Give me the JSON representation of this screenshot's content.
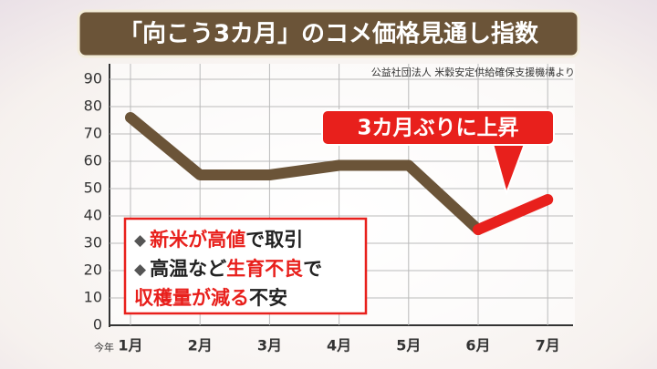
{
  "chart_data": {
    "type": "line",
    "title": "「向こう3カ月」のコメ価格見通し指数",
    "source": "公益社団法人 米穀安定供給確保支援機構より",
    "x_note": "今年",
    "categories": [
      "1月",
      "2月",
      "3月",
      "4月",
      "5月",
      "6月",
      "7月"
    ],
    "series": [
      {
        "color": "#6b5438",
        "values": [
          76,
          55,
          55,
          58.5,
          58.5,
          35,
          null
        ]
      },
      {
        "color": "#e8201c",
        "values": [
          null,
          null,
          null,
          null,
          null,
          35,
          46
        ]
      }
    ],
    "ylim": [
      0,
      90
    ],
    "yticks": [
      0,
      10,
      20,
      30,
      40,
      50,
      60,
      70,
      80,
      90
    ],
    "grid": true,
    "callout": "3カ月ぶりに上昇",
    "annotation": [
      {
        "bullet": "◆",
        "segments": [
          {
            "text": "新米が高値",
            "color": "#e8201c"
          },
          {
            "text": "で取引",
            "color": "#222222"
          }
        ]
      },
      {
        "bullet": "◆",
        "segments": [
          {
            "text": "高温など",
            "color": "#222222"
          },
          {
            "text": "生育不良",
            "color": "#e8201c"
          },
          {
            "text": "で",
            "color": "#222222"
          }
        ]
      },
      {
        "segments": [
          {
            "text": "収穫量が減る",
            "color": "#e8201c"
          },
          {
            "text": "不安",
            "color": "#222222"
          }
        ]
      }
    ]
  }
}
